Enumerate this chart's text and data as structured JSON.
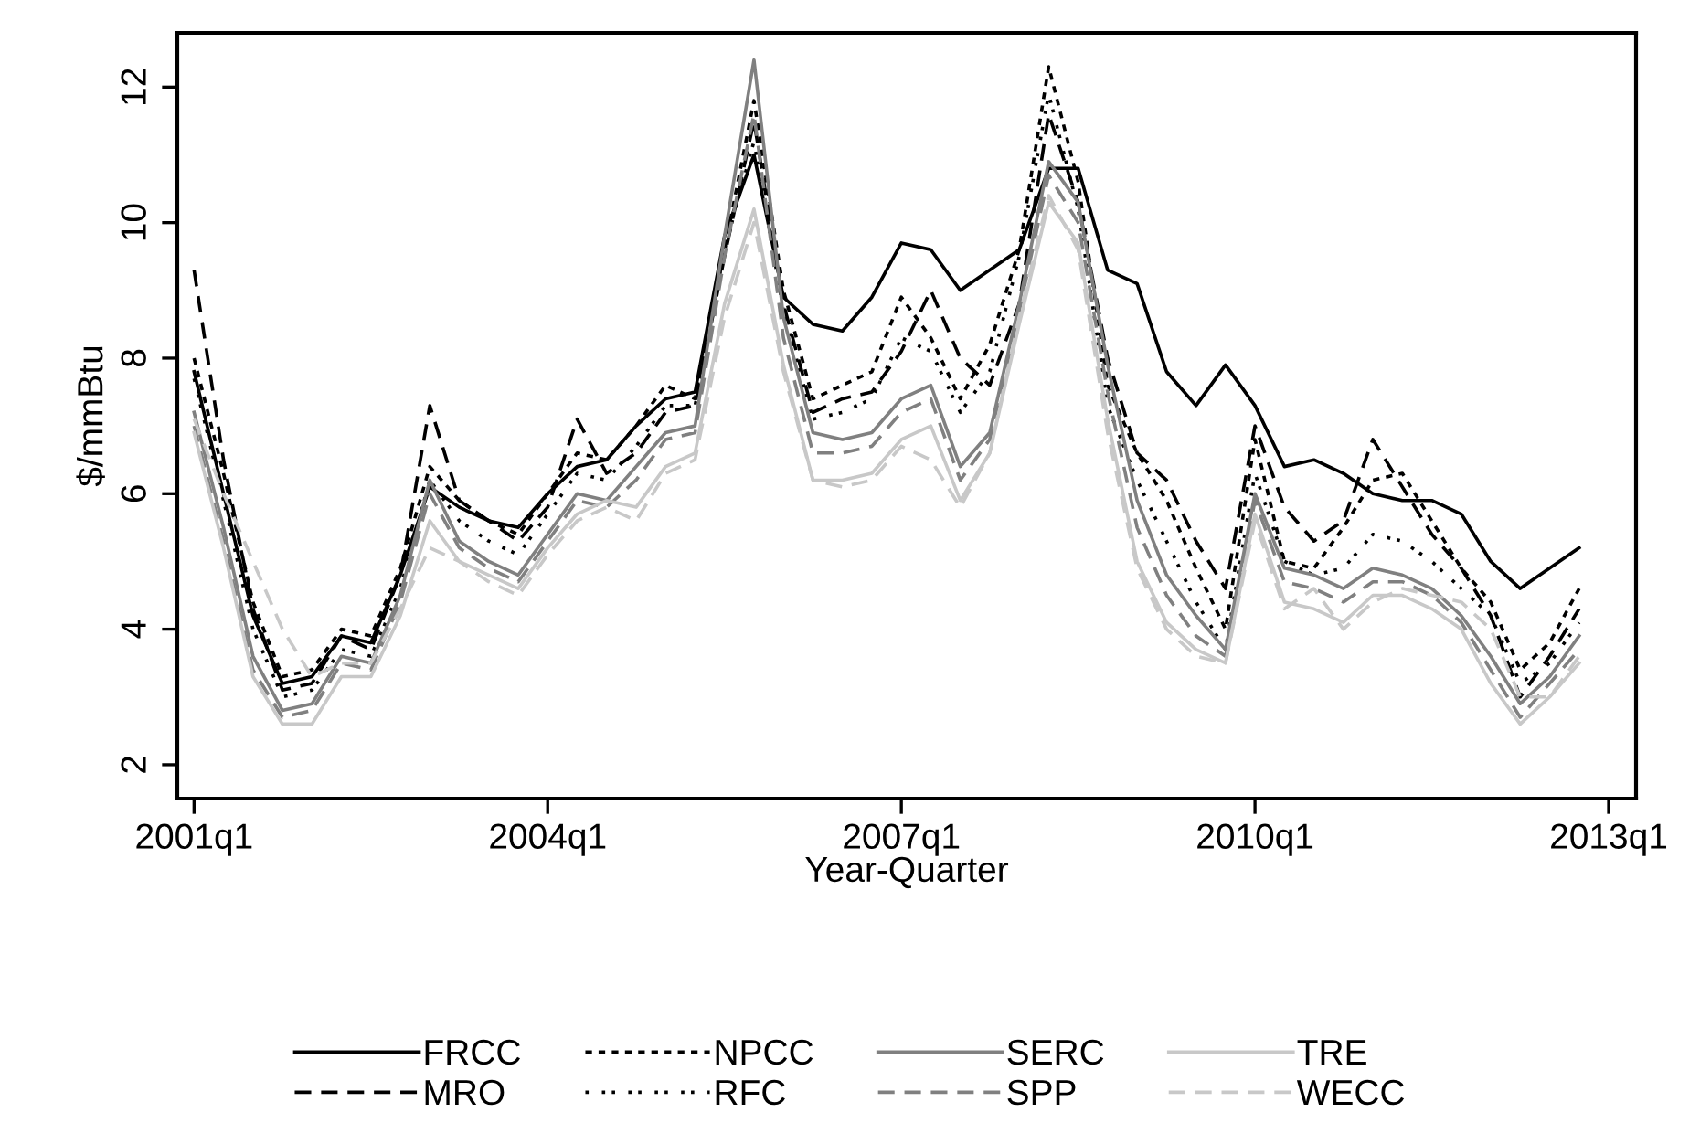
{
  "chart_data": {
    "type": "line",
    "xlabel": "Year-Quarter",
    "ylabel": "$/mmBtu",
    "x": [
      "2001-01",
      "2001-04",
      "2001-07",
      "2001-10",
      "2002-01",
      "2002-04",
      "2002-07",
      "2002-10",
      "2003-01",
      "2003-04",
      "2003-07",
      "2003-10",
      "2004-01",
      "2004-04",
      "2004-07",
      "2004-10",
      "2005-01",
      "2005-04",
      "2005-07",
      "2005-10",
      "2006-01",
      "2006-04",
      "2006-07",
      "2006-10",
      "2007-01",
      "2007-04",
      "2007-07",
      "2007-10",
      "2008-01",
      "2008-04",
      "2008-07",
      "2008-10",
      "2009-01",
      "2009-04",
      "2009-07",
      "2009-10",
      "2010-01",
      "2010-04",
      "2010-07",
      "2010-10",
      "2011-01",
      "2011-04",
      "2011-07",
      "2011-10",
      "2012-01",
      "2012-04",
      "2012-07",
      "2012-10"
    ],
    "xlim": [
      "2000-11-10",
      "2013-03-25"
    ],
    "xticks": [
      {
        "value": "2001-01",
        "label": "2001q1"
      },
      {
        "value": "2004-01",
        "label": "2004q1"
      },
      {
        "value": "2007-01",
        "label": "2007q1"
      },
      {
        "value": "2010-01",
        "label": "2010q1"
      },
      {
        "value": "2013-01",
        "label": "2013q1"
      }
    ],
    "ylim": [
      1.5,
      12.8
    ],
    "yticks": [
      2,
      4,
      6,
      8,
      10,
      12
    ],
    "grid": false,
    "legend": "bottom",
    "series": [
      {
        "name": "FRCC",
        "color": "#000000",
        "line_style": "solid",
        "values": [
          7.8,
          6.0,
          4.2,
          3.2,
          3.3,
          3.9,
          3.8,
          4.8,
          6.1,
          5.8,
          5.6,
          5.5,
          6.0,
          6.4,
          6.5,
          7.0,
          7.4,
          7.5,
          9.8,
          11.0,
          8.9,
          8.5,
          8.4,
          8.9,
          9.7,
          9.6,
          9.0,
          9.3,
          9.6,
          10.8,
          10.8,
          9.3,
          9.1,
          7.8,
          7.3,
          7.9,
          7.3,
          6.4,
          6.5,
          6.3,
          6.0,
          5.9,
          5.9,
          5.7,
          5.0,
          4.6,
          4.9,
          5.2
        ]
      },
      {
        "name": "MRO",
        "color": "#000000",
        "line_style": "dashed",
        "values": [
          9.3,
          6.5,
          4.3,
          3.1,
          3.2,
          3.9,
          3.7,
          4.8,
          7.3,
          5.9,
          5.6,
          5.3,
          5.8,
          7.1,
          6.3,
          6.6,
          7.2,
          7.3,
          9.5,
          11.5,
          8.8,
          7.2,
          7.4,
          7.5,
          8.1,
          9.0,
          8.0,
          7.6,
          8.8,
          11.6,
          10.3,
          8.0,
          6.6,
          6.2,
          5.3,
          4.6,
          7.0,
          5.8,
          5.3,
          5.6,
          6.8,
          6.1,
          5.4,
          4.9,
          4.2,
          3.0,
          3.6,
          4.3
        ]
      },
      {
        "name": "NPCC",
        "color": "#000000",
        "line_style": "dotted",
        "values": [
          8.0,
          6.3,
          4.4,
          3.3,
          3.4,
          4.0,
          3.9,
          4.9,
          6.4,
          5.9,
          5.6,
          5.4,
          6.0,
          6.6,
          6.5,
          7.0,
          7.6,
          7.4,
          9.6,
          11.8,
          9.0,
          7.4,
          7.6,
          7.8,
          8.9,
          8.3,
          7.4,
          8.2,
          9.6,
          12.3,
          10.6,
          7.6,
          6.6,
          5.9,
          4.9,
          4.0,
          6.8,
          5.0,
          4.9,
          5.5,
          6.2,
          6.3,
          5.6,
          4.9,
          4.4,
          3.4,
          3.8,
          4.6
        ]
      },
      {
        "name": "RFC",
        "color": "#000000",
        "line_style": "dashdot",
        "values": [
          7.7,
          5.9,
          4.0,
          3.0,
          3.1,
          3.7,
          3.6,
          4.6,
          6.2,
          5.6,
          5.3,
          5.1,
          5.7,
          6.3,
          6.2,
          6.7,
          7.3,
          7.3,
          9.6,
          11.2,
          8.7,
          7.1,
          7.2,
          7.4,
          8.3,
          8.1,
          7.2,
          7.8,
          9.5,
          11.9,
          10.2,
          7.3,
          6.2,
          5.3,
          4.4,
          3.7,
          6.3,
          5.0,
          4.8,
          4.9,
          5.4,
          5.3,
          5.0,
          4.6,
          4.2,
          3.2,
          3.5,
          4.1
        ]
      },
      {
        "name": "SERC",
        "color": "#808080",
        "line_style": "solid",
        "values": [
          7.2,
          5.5,
          3.6,
          2.8,
          2.9,
          3.6,
          3.5,
          4.5,
          6.2,
          5.3,
          5.0,
          4.8,
          5.4,
          6.0,
          5.9,
          6.4,
          6.9,
          7.0,
          9.8,
          12.4,
          8.6,
          6.9,
          6.8,
          6.9,
          7.4,
          7.6,
          6.4,
          6.9,
          8.8,
          10.9,
          10.3,
          7.9,
          5.9,
          4.8,
          4.2,
          3.7,
          6.0,
          4.9,
          4.8,
          4.6,
          4.9,
          4.8,
          4.6,
          4.2,
          3.6,
          2.9,
          3.3,
          3.9
        ]
      },
      {
        "name": "SPP",
        "color": "#808080",
        "line_style": "dashed",
        "values": [
          7.0,
          5.3,
          3.4,
          2.7,
          2.8,
          3.5,
          3.4,
          4.4,
          6.0,
          5.2,
          4.9,
          4.7,
          5.3,
          5.9,
          5.8,
          6.2,
          6.8,
          6.9,
          9.5,
          11.6,
          8.3,
          6.6,
          6.6,
          6.7,
          7.2,
          7.4,
          6.2,
          6.8,
          8.7,
          10.7,
          10.0,
          7.5,
          5.5,
          4.5,
          3.9,
          3.6,
          5.9,
          4.7,
          4.6,
          4.4,
          4.7,
          4.7,
          4.5,
          4.1,
          3.4,
          2.7,
          3.2,
          3.7
        ]
      },
      {
        "name": "TRE",
        "color": "#c8c8c8",
        "line_style": "solid",
        "values": [
          6.9,
          5.2,
          3.3,
          2.6,
          2.6,
          3.3,
          3.3,
          4.2,
          5.6,
          5.0,
          4.8,
          4.6,
          5.2,
          5.7,
          5.9,
          5.8,
          6.4,
          6.6,
          8.8,
          10.2,
          7.9,
          6.2,
          6.2,
          6.3,
          6.8,
          7.0,
          5.9,
          6.6,
          8.5,
          10.3,
          9.7,
          7.1,
          5.0,
          4.1,
          3.7,
          3.5,
          5.7,
          4.4,
          4.3,
          4.1,
          4.5,
          4.5,
          4.3,
          4.0,
          3.2,
          2.6,
          3.0,
          3.5
        ]
      },
      {
        "name": "WECC",
        "color": "#c8c8c8",
        "line_style": "dashed",
        "values": [
          7.1,
          6.0,
          5.0,
          4.0,
          3.3,
          3.5,
          3.5,
          4.3,
          5.2,
          5.0,
          4.7,
          4.5,
          5.1,
          5.6,
          5.8,
          5.6,
          6.3,
          6.5,
          8.6,
          10.0,
          7.8,
          6.2,
          6.1,
          6.2,
          6.7,
          6.5,
          5.8,
          6.6,
          8.6,
          10.4,
          9.6,
          6.9,
          4.9,
          4.0,
          3.6,
          3.5,
          5.6,
          4.3,
          4.6,
          4.0,
          4.4,
          4.6,
          4.5,
          4.4,
          4.0,
          3.0,
          3.0,
          3.6
        ]
      }
    ]
  }
}
